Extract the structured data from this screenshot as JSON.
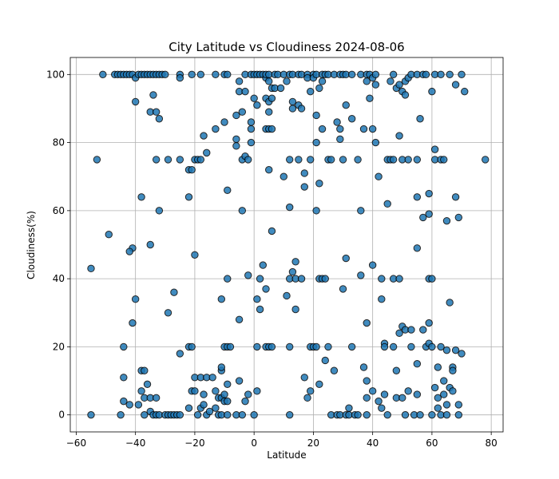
{
  "chart_data": {
    "type": "scatter",
    "title": "City Latitude vs Cloudiness 2024-08-06",
    "xlabel": "Latitude",
    "ylabel": "Cloudiness(%)",
    "xlim": [
      -62,
      84
    ],
    "ylim": [
      -5,
      105
    ],
    "xticks": [
      -60,
      -40,
      -20,
      0,
      20,
      40,
      60,
      80
    ],
    "yticks": [
      0,
      20,
      40,
      60,
      80,
      100
    ],
    "grid": true,
    "marker_color": "#1f77b4",
    "edge_color": "#000000",
    "points": [
      [
        -55,
        43
      ],
      [
        -55,
        0
      ],
      [
        -53,
        75
      ],
      [
        -51,
        100
      ],
      [
        -49,
        53
      ],
      [
        -47,
        100
      ],
      [
        -46,
        100
      ],
      [
        -45,
        100
      ],
      [
        -44,
        100
      ],
      [
        -43,
        100
      ],
      [
        -42,
        100
      ],
      [
        -41,
        100
      ],
      [
        -40,
        99
      ],
      [
        -39,
        100
      ],
      [
        -38,
        100
      ],
      [
        -37,
        100
      ],
      [
        -36,
        100
      ],
      [
        -35,
        100
      ],
      [
        -34,
        100
      ],
      [
        -33,
        100
      ],
      [
        -32,
        100
      ],
      [
        -31,
        100
      ],
      [
        -30,
        100
      ],
      [
        -25,
        100
      ],
      [
        -25,
        99
      ],
      [
        -21,
        100
      ],
      [
        -18,
        100
      ],
      [
        -13,
        100
      ],
      [
        -10,
        100
      ],
      [
        -9,
        100
      ],
      [
        -40,
        92
      ],
      [
        -35,
        89
      ],
      [
        -34,
        94
      ],
      [
        -33,
        89
      ],
      [
        -32,
        87
      ],
      [
        -38,
        64
      ],
      [
        -32,
        60
      ],
      [
        -35,
        50
      ],
      [
        -41,
        49
      ],
      [
        -42,
        48
      ],
      [
        -40,
        34
      ],
      [
        -41,
        27
      ],
      [
        -29,
        30
      ],
      [
        -27,
        36
      ],
      [
        -44,
        20
      ],
      [
        -44,
        11
      ],
      [
        -38,
        13
      ],
      [
        -37,
        13
      ],
      [
        -44,
        4
      ],
      [
        -42,
        3
      ],
      [
        -39,
        3
      ],
      [
        -38,
        7
      ],
      [
        -37,
        5
      ],
      [
        -36,
        9
      ],
      [
        -35,
        5
      ],
      [
        -33,
        5
      ],
      [
        -45,
        0
      ],
      [
        -37,
        0
      ],
      [
        -35,
        1
      ],
      [
        -34,
        0
      ],
      [
        -33,
        0
      ],
      [
        -32,
        0
      ],
      [
        -30,
        0
      ],
      [
        -29,
        0
      ],
      [
        -28,
        0
      ],
      [
        -27,
        0
      ],
      [
        -26,
        0
      ],
      [
        -25,
        0
      ],
      [
        -33,
        75
      ],
      [
        -29,
        75
      ],
      [
        -25,
        75
      ],
      [
        -22,
        72
      ],
      [
        -21,
        72
      ],
      [
        -22,
        64
      ],
      [
        -20,
        47
      ],
      [
        -25,
        18
      ],
      [
        -22,
        20
      ],
      [
        -21,
        20
      ],
      [
        -20,
        11
      ],
      [
        -21,
        7
      ],
      [
        -20,
        7
      ],
      [
        -18,
        11
      ],
      [
        -17,
        6
      ],
      [
        -16,
        11
      ],
      [
        -14,
        11
      ],
      [
        -13,
        7
      ],
      [
        -12,
        5
      ],
      [
        -11,
        5
      ],
      [
        -10,
        4
      ],
      [
        -10,
        6
      ],
      [
        -9,
        9
      ],
      [
        -9,
        4
      ],
      [
        -5,
        10
      ],
      [
        -3,
        4
      ],
      [
        -22,
        2
      ],
      [
        -19,
        0
      ],
      [
        -18,
        2
      ],
      [
        -17,
        3
      ],
      [
        -16,
        0
      ],
      [
        -15,
        1
      ],
      [
        -13,
        2
      ],
      [
        -12,
        0
      ],
      [
        -11,
        0
      ],
      [
        -9,
        0
      ],
      [
        -6,
        0
      ],
      [
        -4,
        0
      ],
      [
        -2,
        6
      ],
      [
        0,
        0
      ],
      [
        1,
        7
      ],
      [
        -20,
        75
      ],
      [
        -19,
        75
      ],
      [
        -18,
        75
      ],
      [
        -17,
        82
      ],
      [
        -16,
        77
      ],
      [
        -13,
        84
      ],
      [
        -11,
        13
      ],
      [
        -11,
        14
      ],
      [
        -11,
        34
      ],
      [
        -10,
        86
      ],
      [
        -10,
        20
      ],
      [
        -9,
        40
      ],
      [
        -9,
        66
      ],
      [
        -9,
        20
      ],
      [
        -8,
        20
      ],
      [
        -6,
        88
      ],
      [
        -6,
        81
      ],
      [
        -6,
        79
      ],
      [
        -5,
        95
      ],
      [
        -5,
        98
      ],
      [
        -5,
        28
      ],
      [
        -4,
        89
      ],
      [
        -4,
        60
      ],
      [
        -4,
        75
      ],
      [
        -3,
        100
      ],
      [
        -3,
        95
      ],
      [
        -3,
        76
      ],
      [
        -2,
        75
      ],
      [
        -2,
        41
      ],
      [
        -1,
        80
      ],
      [
        -1,
        100
      ],
      [
        -1,
        86
      ],
      [
        -1,
        84
      ],
      [
        0,
        100
      ],
      [
        0,
        93
      ],
      [
        1,
        100
      ],
      [
        1,
        91
      ],
      [
        1,
        34
      ],
      [
        1,
        20
      ],
      [
        2,
        100
      ],
      [
        2,
        31
      ],
      [
        2,
        40
      ],
      [
        3,
        100
      ],
      [
        3,
        44
      ],
      [
        4,
        99
      ],
      [
        4,
        100
      ],
      [
        4,
        93
      ],
      [
        4,
        84
      ],
      [
        4,
        37
      ],
      [
        4,
        20
      ],
      [
        5,
        100
      ],
      [
        5,
        98
      ],
      [
        5,
        92
      ],
      [
        5,
        89
      ],
      [
        5,
        84
      ],
      [
        5,
        72
      ],
      [
        5,
        20
      ],
      [
        6,
        96
      ],
      [
        6,
        93
      ],
      [
        6,
        84
      ],
      [
        6,
        54
      ],
      [
        6,
        20
      ],
      [
        7,
        100
      ],
      [
        7,
        96
      ],
      [
        8,
        100
      ],
      [
        9,
        96
      ],
      [
        10,
        100
      ],
      [
        10,
        70
      ],
      [
        11,
        98
      ],
      [
        11,
        35
      ],
      [
        12,
        100
      ],
      [
        12,
        75
      ],
      [
        12,
        61
      ],
      [
        12,
        40
      ],
      [
        12,
        20
      ],
      [
        12,
        0
      ],
      [
        13,
        100
      ],
      [
        13,
        92
      ],
      [
        13,
        90
      ],
      [
        13,
        42
      ],
      [
        14,
        45
      ],
      [
        14,
        31
      ],
      [
        14,
        40
      ],
      [
        15,
        100
      ],
      [
        15,
        91
      ],
      [
        15,
        75
      ],
      [
        16,
        100
      ],
      [
        16,
        90
      ],
      [
        16,
        40
      ],
      [
        17,
        71
      ],
      [
        17,
        67
      ],
      [
        17,
        11
      ],
      [
        18,
        100
      ],
      [
        18,
        99
      ],
      [
        18,
        5
      ],
      [
        19,
        95
      ],
      [
        19,
        75
      ],
      [
        19,
        20
      ],
      [
        19,
        7
      ],
      [
        20,
        100
      ],
      [
        20,
        99
      ],
      [
        20,
        20
      ],
      [
        21,
        100
      ],
      [
        21,
        88
      ],
      [
        21,
        80
      ],
      [
        21,
        60
      ],
      [
        21,
        20
      ],
      [
        22,
        68
      ],
      [
        22,
        40
      ],
      [
        22,
        96
      ],
      [
        22,
        9
      ],
      [
        23,
        100
      ],
      [
        23,
        98
      ],
      [
        23,
        84
      ],
      [
        23,
        40
      ],
      [
        24,
        100
      ],
      [
        24,
        40
      ],
      [
        24,
        16
      ],
      [
        25,
        100
      ],
      [
        25,
        75
      ],
      [
        25,
        20
      ],
      [
        26,
        75
      ],
      [
        26,
        0
      ],
      [
        27,
        100
      ],
      [
        27,
        13
      ],
      [
        28,
        86
      ],
      [
        28,
        0
      ],
      [
        29,
        100
      ],
      [
        29,
        84
      ],
      [
        29,
        81
      ],
      [
        29,
        0
      ],
      [
        30,
        100
      ],
      [
        30,
        75
      ],
      [
        30,
        37
      ],
      [
        31,
        100
      ],
      [
        31,
        91
      ],
      [
        31,
        46
      ],
      [
        31,
        0
      ],
      [
        32,
        2
      ],
      [
        32,
        0
      ],
      [
        33,
        100
      ],
      [
        33,
        87
      ],
      [
        33,
        20
      ],
      [
        34,
        0
      ],
      [
        35,
        75
      ],
      [
        35,
        0
      ],
      [
        36,
        100
      ],
      [
        36,
        60
      ],
      [
        36,
        41
      ],
      [
        37,
        84
      ],
      [
        37,
        14
      ],
      [
        38,
        100
      ],
      [
        38,
        98
      ],
      [
        38,
        27
      ],
      [
        38,
        10
      ],
      [
        38,
        5
      ],
      [
        38,
        0
      ],
      [
        39,
        100
      ],
      [
        39,
        93
      ],
      [
        40,
        99
      ],
      [
        40,
        84
      ],
      [
        40,
        44
      ],
      [
        40,
        7
      ],
      [
        41,
        100
      ],
      [
        41,
        97
      ],
      [
        41,
        80
      ],
      [
        42,
        70
      ],
      [
        42,
        4
      ],
      [
        43,
        40
      ],
      [
        43,
        34
      ],
      [
        43,
        2
      ],
      [
        44,
        21
      ],
      [
        44,
        20
      ],
      [
        44,
        6
      ],
      [
        45,
        75
      ],
      [
        45,
        62
      ],
      [
        45,
        0
      ],
      [
        46,
        98
      ],
      [
        46,
        75
      ],
      [
        47,
        100
      ],
      [
        47,
        75
      ],
      [
        47,
        40
      ],
      [
        47,
        20
      ],
      [
        48,
        96
      ],
      [
        48,
        13
      ],
      [
        48,
        5
      ],
      [
        49,
        97
      ],
      [
        49,
        82
      ],
      [
        49,
        40
      ],
      [
        49,
        24
      ],
      [
        50,
        95
      ],
      [
        50,
        75
      ],
      [
        50,
        26
      ],
      [
        50,
        5
      ],
      [
        51,
        98
      ],
      [
        51,
        94
      ],
      [
        51,
        25
      ],
      [
        51,
        0
      ],
      [
        52,
        99
      ],
      [
        52,
        75
      ],
      [
        52,
        7
      ],
      [
        53,
        100
      ],
      [
        53,
        25
      ],
      [
        53,
        20
      ],
      [
        54,
        0
      ],
      [
        55,
        100
      ],
      [
        55,
        75
      ],
      [
        55,
        64
      ],
      [
        55,
        49
      ],
      [
        55,
        15
      ],
      [
        55,
        6
      ],
      [
        56,
        87
      ],
      [
        56,
        0
      ],
      [
        57,
        58
      ],
      [
        57,
        25
      ],
      [
        57,
        100
      ],
      [
        58,
        100
      ],
      [
        58,
        20
      ],
      [
        59,
        65
      ],
      [
        59,
        59
      ],
      [
        59,
        40
      ],
      [
        59,
        27
      ],
      [
        59,
        21
      ],
      [
        60,
        95
      ],
      [
        60,
        40
      ],
      [
        60,
        20
      ],
      [
        60,
        0
      ],
      [
        61,
        100
      ],
      [
        61,
        78
      ],
      [
        61,
        75
      ],
      [
        61,
        8
      ],
      [
        62,
        14
      ],
      [
        62,
        5
      ],
      [
        62,
        2
      ],
      [
        63,
        100
      ],
      [
        63,
        75
      ],
      [
        63,
        20
      ],
      [
        63,
        0
      ],
      [
        64,
        75
      ],
      [
        64,
        10
      ],
      [
        64,
        6
      ],
      [
        65,
        57
      ],
      [
        65,
        19
      ],
      [
        65,
        3
      ],
      [
        65,
        0
      ],
      [
        66,
        100
      ],
      [
        66,
        33
      ],
      [
        66,
        8
      ],
      [
        67,
        14
      ],
      [
        67,
        13
      ],
      [
        67,
        7
      ],
      [
        68,
        97
      ],
      [
        68,
        64
      ],
      [
        68,
        19
      ],
      [
        69,
        58
      ],
      [
        69,
        3
      ],
      [
        69,
        0
      ],
      [
        70,
        100
      ],
      [
        70,
        18
      ],
      [
        71,
        95
      ],
      [
        78,
        75
      ]
    ]
  }
}
